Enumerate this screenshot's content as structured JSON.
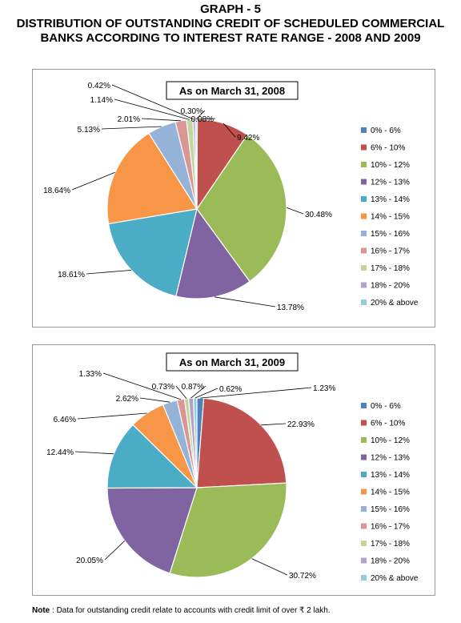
{
  "header": {
    "line1": "GRAPH - 5",
    "line2": "DISTRIBUTION OF OUTSTANDING CREDIT OF SCHEDULED COMMERCIAL",
    "line3": "BANKS ACCORDING TO INTEREST RATE RANGE - 2008 AND 2009"
  },
  "chart_data": [
    {
      "type": "pie",
      "title": "As on March 31, 2008",
      "legend_position": "right",
      "categories": [
        "0% - 6%",
        "6% - 10%",
        "10% - 12%",
        "12% - 13%",
        "13% - 14%",
        "14% - 15%",
        "15% - 16%",
        "16% - 17%",
        "17% - 18%",
        "18% - 20%",
        "20% & above"
      ],
      "values": [
        0.08,
        9.42,
        30.48,
        13.78,
        18.61,
        18.64,
        5.13,
        2.01,
        1.14,
        0.42,
        0.3
      ],
      "labels": [
        "0.08%",
        "9.42%",
        "30.48%",
        "13.78%",
        "18.61%",
        "18.64%",
        "5.13%",
        "2.01%",
        "1.14%",
        "0.42%",
        "0.30%"
      ],
      "colors": [
        "#4f81bd",
        "#c0504d",
        "#9bbb59",
        "#8064a2",
        "#4bacc6",
        "#f79646",
        "#95b3d7",
        "#d99694",
        "#c3d69b",
        "#b3a2c7",
        "#93cddd"
      ]
    },
    {
      "type": "pie",
      "title": "As on March 31, 2009",
      "legend_position": "right",
      "categories": [
        "0% - 6%",
        "6% - 10%",
        "10% - 12%",
        "12% - 13%",
        "13% - 14%",
        "14% - 15%",
        "15% - 16%",
        "16% - 17%",
        "17% - 18%",
        "18% - 20%",
        "20% & above"
      ],
      "values": [
        1.23,
        22.93,
        30.72,
        20.05,
        12.44,
        6.46,
        2.62,
        1.33,
        0.73,
        0.87,
        0.62
      ],
      "labels": [
        "1.23%",
        "22.93%",
        "30.72%",
        "20.05%",
        "12.44%",
        "6.46%",
        "2.62%",
        "1.33%",
        "0.73%",
        "0.87%",
        "0.62%"
      ],
      "colors": [
        "#4f81bd",
        "#c0504d",
        "#9bbb59",
        "#8064a2",
        "#4bacc6",
        "#f79646",
        "#95b3d7",
        "#d99694",
        "#c3d69b",
        "#b3a2c7",
        "#93cddd"
      ]
    }
  ],
  "note": {
    "label": "Note",
    "text": " : Data for outstanding credit relate to accounts with credit limit of over ₹ 2 lakh."
  }
}
